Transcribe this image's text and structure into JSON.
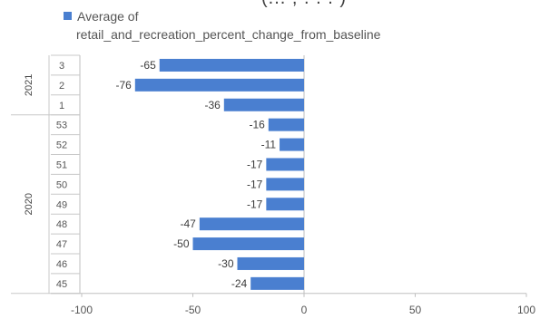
{
  "header": {
    "cut_title": "(... , . . . )"
  },
  "chart_data": {
    "type": "bar",
    "orientation": "horizontal",
    "title": "",
    "xlabel": "",
    "ylabel": "",
    "xlim": [
      -100,
      100
    ],
    "x_ticks": [
      -100,
      -50,
      0,
      50,
      100
    ],
    "grid": false,
    "legend": {
      "placement": "top-left",
      "text_line1": "Average of",
      "text_line2": "retail_and_recreation_percent_change_from_baseline"
    },
    "series": [
      {
        "name": "Average of retail_and_recreation_percent_change_from_baseline",
        "color": "#4a7fd0"
      }
    ],
    "groups": [
      {
        "year": "2021",
        "rows": [
          {
            "week": "3",
            "value": -65
          },
          {
            "week": "2",
            "value": -76
          },
          {
            "week": "1",
            "value": -36
          }
        ]
      },
      {
        "year": "2020",
        "rows": [
          {
            "week": "53",
            "value": -16
          },
          {
            "week": "52",
            "value": -11
          },
          {
            "week": "51",
            "value": -17
          },
          {
            "week": "50",
            "value": -17
          },
          {
            "week": "49",
            "value": -17
          },
          {
            "week": "48",
            "value": -47
          },
          {
            "week": "47",
            "value": -50
          },
          {
            "week": "46",
            "value": -30
          },
          {
            "week": "45",
            "value": -24
          }
        ]
      }
    ]
  }
}
